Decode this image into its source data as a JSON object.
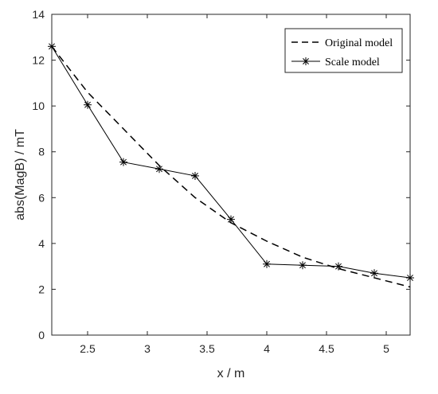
{
  "chart_data": {
    "type": "line",
    "title": "",
    "xlabel": "x / m",
    "ylabel": "abs(MagB) / mT",
    "xlim": [
      2.2,
      5.2
    ],
    "ylim": [
      0,
      14
    ],
    "xticks": [
      2.5,
      3,
      3.5,
      4,
      4.5,
      5
    ],
    "xtick_labels": [
      "2.5",
      "3",
      "3.5",
      "4",
      "4.5",
      "5"
    ],
    "yticks": [
      0,
      2,
      4,
      6,
      8,
      10,
      12,
      14
    ],
    "ytick_labels": [
      "0",
      "2",
      "4",
      "6",
      "8",
      "10",
      "12",
      "14"
    ],
    "grid": false,
    "legend_position": "top-right",
    "series": [
      {
        "name": "Original model",
        "style": "dashed",
        "marker": "none",
        "color": "#000000",
        "x": [
          2.2,
          2.5,
          2.8,
          3.1,
          3.4,
          3.7,
          4.0,
          4.3,
          4.6,
          4.9,
          5.2
        ],
        "y": [
          12.6,
          10.6,
          9.0,
          7.4,
          6.0,
          4.9,
          4.1,
          3.4,
          2.9,
          2.5,
          2.1
        ]
      },
      {
        "name": "Scale model",
        "style": "solid",
        "marker": "asterisk",
        "color": "#000000",
        "x": [
          2.2,
          2.5,
          2.8,
          3.1,
          3.4,
          3.7,
          4.0,
          4.3,
          4.6,
          4.9,
          5.2
        ],
        "y": [
          12.6,
          10.05,
          7.55,
          7.25,
          6.95,
          5.05,
          3.1,
          3.05,
          3.0,
          2.7,
          2.5
        ]
      }
    ]
  }
}
